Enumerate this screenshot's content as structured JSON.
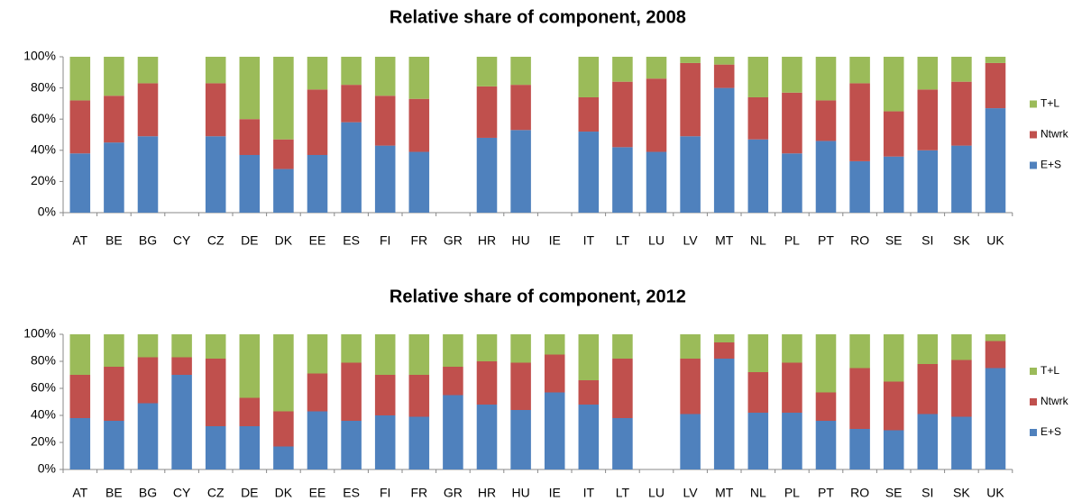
{
  "chart_data": [
    {
      "type": "stacked_bar",
      "title": "Relative share of component, 2008",
      "categories": [
        "AT",
        "BE",
        "BG",
        "CY",
        "CZ",
        "DE",
        "DK",
        "EE",
        "ES",
        "FI",
        "FR",
        "GR",
        "HR",
        "HU",
        "IE",
        "IT",
        "LT",
        "LU",
        "LV",
        "MT",
        "NL",
        "PL",
        "PT",
        "RO",
        "SE",
        "SI",
        "SK",
        "UK"
      ],
      "series": [
        {
          "name": "E+S",
          "color": "#4f81bd",
          "values": [
            38,
            45,
            49,
            null,
            49,
            37,
            28,
            37,
            58,
            43,
            39,
            null,
            48,
            53,
            null,
            52,
            42,
            39,
            49,
            80,
            47,
            38,
            46,
            33,
            36,
            40,
            43,
            67
          ]
        },
        {
          "name": "Ntwrk",
          "color": "#c0504d",
          "values": [
            34,
            30,
            34,
            null,
            34,
            23,
            19,
            42,
            24,
            32,
            34,
            null,
            33,
            29,
            null,
            22,
            42,
            47,
            47,
            15,
            27,
            39,
            26,
            50,
            29,
            39,
            41,
            29
          ]
        },
        {
          "name": "T+L",
          "color": "#9bbb59",
          "values": [
            28,
            25,
            17,
            null,
            17,
            40,
            53,
            21,
            18,
            25,
            27,
            null,
            19,
            18,
            null,
            26,
            16,
            14,
            4,
            5,
            26,
            23,
            28,
            17,
            35,
            21,
            16,
            4
          ]
        }
      ],
      "ylim": [
        0,
        100
      ],
      "yticks": [
        {
          "value": 0,
          "label": "0%"
        },
        {
          "value": 20,
          "label": "20%"
        },
        {
          "value": 40,
          "label": "40%"
        },
        {
          "value": 60,
          "label": "60%"
        },
        {
          "value": 80,
          "label": "80%"
        },
        {
          "value": 100,
          "label": "100%"
        }
      ],
      "grid": false,
      "legend": "right"
    },
    {
      "type": "stacked_bar",
      "title": "Relative share of component, 2012",
      "categories": [
        "AT",
        "BE",
        "BG",
        "CY",
        "CZ",
        "DE",
        "DK",
        "EE",
        "ES",
        "FI",
        "FR",
        "GR",
        "HR",
        "HU",
        "IE",
        "IT",
        "LT",
        "LU",
        "LV",
        "MT",
        "NL",
        "PL",
        "PT",
        "RO",
        "SE",
        "SI",
        "SK",
        "UK"
      ],
      "series": [
        {
          "name": "E+S",
          "color": "#4f81bd",
          "values": [
            38,
            36,
            49,
            70,
            32,
            32,
            17,
            43,
            36,
            40,
            39,
            55,
            48,
            44,
            57,
            48,
            38,
            null,
            41,
            82,
            42,
            42,
            36,
            30,
            29,
            41,
            39,
            75
          ]
        },
        {
          "name": "Ntwrk",
          "color": "#c0504d",
          "values": [
            32,
            40,
            34,
            13,
            50,
            21,
            26,
            28,
            43,
            30,
            31,
            21,
            32,
            35,
            28,
            18,
            44,
            null,
            41,
            12,
            30,
            37,
            21,
            45,
            36,
            37,
            42,
            20
          ]
        },
        {
          "name": "T+L",
          "color": "#9bbb59",
          "values": [
            30,
            24,
            17,
            17,
            18,
            47,
            57,
            29,
            21,
            30,
            30,
            24,
            20,
            21,
            15,
            34,
            18,
            null,
            18,
            6,
            28,
            21,
            43,
            25,
            35,
            22,
            19,
            5
          ]
        }
      ],
      "ylim": [
        0,
        100
      ],
      "yticks": [
        {
          "value": 0,
          "label": "0%"
        },
        {
          "value": 20,
          "label": "20%"
        },
        {
          "value": 40,
          "label": "40%"
        },
        {
          "value": 60,
          "label": "60%"
        },
        {
          "value": 80,
          "label": "80%"
        },
        {
          "value": 100,
          "label": "100%"
        }
      ],
      "grid": false,
      "legend": "right"
    }
  ]
}
